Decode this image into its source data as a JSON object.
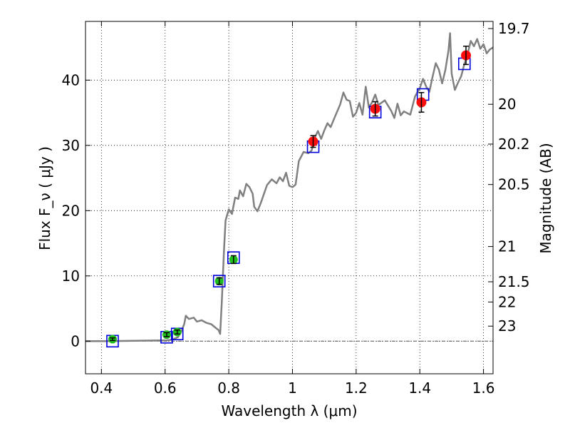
{
  "chart_data": {
    "type": "scatter",
    "xlabel": "Wavelength  λ (μm)",
    "ylabel": "Flux  F_ν  ( μJy )",
    "ylabel_right": "Magnitude (AB)",
    "xlim": [
      0.35,
      1.63
    ],
    "ylim": [
      -5,
      49
    ],
    "x_ticks": [
      0.4,
      0.6,
      0.8,
      1.0,
      1.2,
      1.4,
      1.6
    ],
    "x_tick_labels": [
      "0.4",
      "0.6",
      "0.8",
      "1",
      "1.2",
      "1.4",
      "1.6"
    ],
    "y_ticks": [
      0,
      10,
      20,
      30,
      40
    ],
    "y_tick_labels": [
      "0",
      "10",
      "20",
      "30",
      "40"
    ],
    "right_ticks": [
      {
        "flux": 47.9,
        "label": "19.7"
      },
      {
        "flux": 36.3,
        "label": "20"
      },
      {
        "flux": 30.2,
        "label": "20.2"
      },
      {
        "flux": 24.0,
        "label": "20.5"
      },
      {
        "flux": 14.5,
        "label": "21"
      },
      {
        "flux": 9.1,
        "label": "21.5"
      },
      {
        "flux": 6.0,
        "label": "22"
      },
      {
        "flux": 2.3,
        "label": "23"
      }
    ],
    "grid": true,
    "colors": {
      "model": "#808080",
      "green_points": "#1fbf1f",
      "red_points": "#ff0d0d",
      "boxes": "#0000dd",
      "errorbar": "#000000",
      "zero_line": "#555555"
    },
    "series": [
      {
        "kind": "line",
        "points": [
          [
            0.35,
            0.0
          ],
          [
            0.42,
            0.0
          ],
          [
            0.5,
            0.05
          ],
          [
            0.58,
            0.1
          ],
          [
            0.6,
            0.1
          ],
          [
            0.62,
            0.2
          ],
          [
            0.64,
            0.6
          ],
          [
            0.65,
            1.4
          ],
          [
            0.66,
            2.6
          ],
          [
            0.665,
            3.9
          ],
          [
            0.675,
            3.4
          ],
          [
            0.69,
            3.6
          ],
          [
            0.7,
            3.0
          ],
          [
            0.715,
            3.2
          ],
          [
            0.73,
            2.8
          ],
          [
            0.745,
            2.6
          ],
          [
            0.76,
            2.0
          ],
          [
            0.768,
            1.7
          ],
          [
            0.773,
            1.1
          ],
          [
            0.778,
            6.0
          ],
          [
            0.785,
            14.0
          ],
          [
            0.79,
            18.5
          ],
          [
            0.8,
            20.2
          ],
          [
            0.81,
            19.5
          ],
          [
            0.82,
            22.0
          ],
          [
            0.83,
            21.8
          ],
          [
            0.835,
            23.1
          ],
          [
            0.845,
            22.2
          ],
          [
            0.855,
            24.1
          ],
          [
            0.865,
            23.6
          ],
          [
            0.875,
            22.6
          ],
          [
            0.88,
            20.6
          ],
          [
            0.89,
            19.9
          ],
          [
            0.9,
            21.1
          ],
          [
            0.92,
            23.9
          ],
          [
            0.935,
            24.8
          ],
          [
            0.95,
            24.2
          ],
          [
            0.96,
            25.1
          ],
          [
            0.97,
            24.5
          ],
          [
            0.98,
            25.8
          ],
          [
            0.99,
            23.8
          ],
          [
            1.0,
            23.6
          ],
          [
            1.01,
            24.0
          ],
          [
            1.02,
            27.6
          ],
          [
            1.035,
            29.0
          ],
          [
            1.05,
            28.8
          ],
          [
            1.06,
            29.2
          ],
          [
            1.07,
            31.2
          ],
          [
            1.08,
            32.2
          ],
          [
            1.09,
            31.0
          ],
          [
            1.1,
            32.3
          ],
          [
            1.11,
            33.4
          ],
          [
            1.12,
            32.8
          ],
          [
            1.13,
            34.0
          ],
          [
            1.15,
            36.3
          ],
          [
            1.16,
            38.1
          ],
          [
            1.17,
            37.0
          ],
          [
            1.18,
            36.8
          ],
          [
            1.19,
            34.4
          ],
          [
            1.2,
            35.0
          ],
          [
            1.21,
            36.5
          ],
          [
            1.22,
            34.7
          ],
          [
            1.23,
            39.0
          ],
          [
            1.24,
            35.8
          ],
          [
            1.25,
            36.6
          ],
          [
            1.26,
            37.8
          ],
          [
            1.27,
            36.2
          ],
          [
            1.29,
            36.9
          ],
          [
            1.31,
            35.3
          ],
          [
            1.32,
            34.2
          ],
          [
            1.33,
            36.4
          ],
          [
            1.34,
            34.6
          ],
          [
            1.35,
            35.2
          ],
          [
            1.37,
            34.7
          ],
          [
            1.385,
            37.5
          ],
          [
            1.4,
            38.8
          ],
          [
            1.41,
            40.2
          ],
          [
            1.42,
            39.0
          ],
          [
            1.43,
            38.2
          ],
          [
            1.44,
            40.5
          ],
          [
            1.45,
            42.6
          ],
          [
            1.46,
            41.6
          ],
          [
            1.47,
            39.5
          ],
          [
            1.48,
            41.5
          ],
          [
            1.49,
            44.5
          ],
          [
            1.495,
            47.2
          ],
          [
            1.5,
            41.0
          ],
          [
            1.51,
            38.5
          ],
          [
            1.52,
            39.6
          ],
          [
            1.53,
            40.6
          ],
          [
            1.54,
            42.5
          ],
          [
            1.55,
            44.0
          ],
          [
            1.56,
            46.0
          ],
          [
            1.57,
            45.2
          ],
          [
            1.58,
            46.3
          ],
          [
            1.59,
            44.8
          ],
          [
            1.6,
            45.5
          ],
          [
            1.61,
            44.1
          ],
          [
            1.62,
            44.7
          ],
          [
            1.63,
            45.0
          ]
        ]
      },
      {
        "kind": "boxes",
        "points": [
          [
            0.435,
            0.0
          ],
          [
            0.605,
            0.6
          ],
          [
            0.638,
            1.1
          ],
          [
            0.77,
            9.2
          ],
          [
            0.815,
            12.8
          ],
          [
            1.065,
            29.8
          ],
          [
            1.26,
            35.1
          ],
          [
            1.41,
            37.8
          ],
          [
            1.54,
            42.5
          ]
        ]
      },
      {
        "kind": "points",
        "color_key": "green_points",
        "points": [
          {
            "x": 0.435,
            "y": 0.3,
            "yerr": 0.2
          },
          {
            "x": 0.605,
            "y": 1.0,
            "yerr": 0.3
          },
          {
            "x": 0.638,
            "y": 1.4,
            "yerr": 0.3
          },
          {
            "x": 0.77,
            "y": 9.2,
            "yerr": 0.5
          },
          {
            "x": 0.815,
            "y": 12.5,
            "yerr": 0.6
          }
        ]
      },
      {
        "kind": "points",
        "color_key": "red_points",
        "points": [
          {
            "x": 1.065,
            "y": 30.6,
            "yerr": 0.9
          },
          {
            "x": 1.26,
            "y": 35.6,
            "yerr": 1.1
          },
          {
            "x": 1.405,
            "y": 36.6,
            "yerr": 1.5
          },
          {
            "x": 1.545,
            "y": 43.8,
            "yerr": 1.4
          }
        ]
      }
    ]
  }
}
